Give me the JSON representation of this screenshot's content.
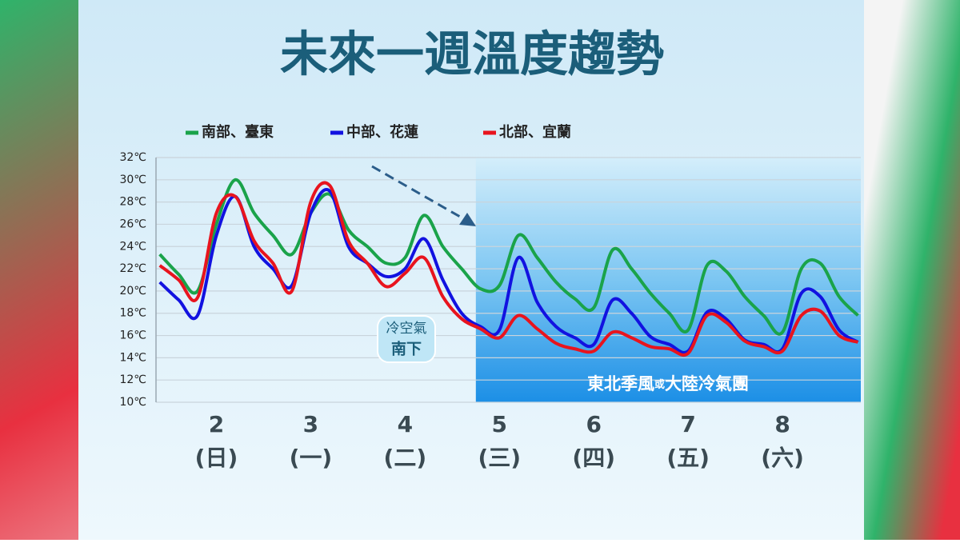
{
  "chart_data": {
    "type": "line",
    "title": "未來一週溫度趨勢",
    "x": [
      1.4,
      1.6,
      1.8,
      2.0,
      2.2,
      2.4,
      2.6,
      2.8,
      3.0,
      3.2,
      3.4,
      3.6,
      3.8,
      4.0,
      4.2,
      4.4,
      4.6,
      4.8,
      5.0,
      5.2,
      5.4,
      5.6,
      5.8,
      6.0,
      6.2,
      6.4,
      6.6,
      6.8,
      7.0,
      7.2,
      7.4,
      7.6,
      7.8,
      8.0,
      8.2,
      8.4,
      8.6,
      8.8
    ],
    "series": [
      {
        "name": "南部、臺東",
        "color": "#1aa34a",
        "values": [
          23.3,
          21.5,
          20,
          26,
          30,
          27,
          25,
          23.3,
          27,
          28.7,
          25.5,
          24,
          22.5,
          23,
          26.8,
          24,
          22,
          20.2,
          20.5,
          25,
          23,
          20.8,
          19.3,
          18.5,
          23.7,
          22,
          19.8,
          18,
          16.5,
          22.3,
          21.8,
          19.5,
          17.8,
          16.3,
          22,
          22.5,
          19.5,
          17.8
        ]
      },
      {
        "name": "中部、花蓮",
        "color": "#1212e0",
        "values": [
          20.8,
          19.2,
          17.8,
          25,
          28.5,
          24,
          22,
          20.5,
          27,
          29,
          24,
          22.5,
          21.3,
          22,
          24.7,
          21,
          18,
          16.8,
          16.5,
          23,
          19,
          16.8,
          15.8,
          15.2,
          19.2,
          18,
          15.9,
          15.2,
          14.6,
          18.1,
          17.5,
          15.6,
          15.2,
          14.8,
          19.8,
          19.5,
          16.5,
          15.4
        ]
      },
      {
        "name": "北部、宜蘭",
        "color": "#e8141e",
        "values": [
          22.3,
          21,
          19.4,
          27,
          28.5,
          24.5,
          22.5,
          20,
          28,
          29.5,
          24.5,
          22.5,
          20.4,
          21.6,
          23,
          19.5,
          17.5,
          16.6,
          15.8,
          17.8,
          16.6,
          15.3,
          14.8,
          14.6,
          16.3,
          15.8,
          15,
          14.8,
          14.4,
          17.8,
          17.2,
          15.5,
          15,
          14.6,
          17.8,
          18.2,
          16,
          15.4
        ]
      }
    ],
    "xlim": [
      1.36,
      8.83
    ],
    "xticks": [
      2,
      3,
      4,
      5,
      6,
      7,
      8
    ],
    "xtick_sublabels": [
      "(日)",
      "(一)",
      "(二)",
      "(三)",
      "(四)",
      "(五)",
      "(六)"
    ],
    "ylim": [
      10,
      32
    ],
    "yticks": [
      {
        "value": 10,
        "label": "10℃"
      },
      {
        "value": 12,
        "label": "12℃"
      },
      {
        "value": 14,
        "label": "14℃"
      },
      {
        "value": 16,
        "label": "16℃"
      },
      {
        "value": 18,
        "label": "18℃"
      },
      {
        "value": 20,
        "label": "20℃"
      },
      {
        "value": 22,
        "label": "22℃"
      },
      {
        "value": 24,
        "label": "24℃"
      },
      {
        "value": 26,
        "label": "26℃"
      },
      {
        "value": 28,
        "label": "28℃"
      },
      {
        "value": 30,
        "label": "30℃"
      },
      {
        "value": 32,
        "label": "32℃"
      }
    ],
    "grid": true,
    "annotations": {
      "bubble": [
        "冷空氣",
        "南下"
      ],
      "region_from": 4.75,
      "region_label": [
        "東北季風",
        "或",
        "大陸冷氣團"
      ]
    }
  }
}
